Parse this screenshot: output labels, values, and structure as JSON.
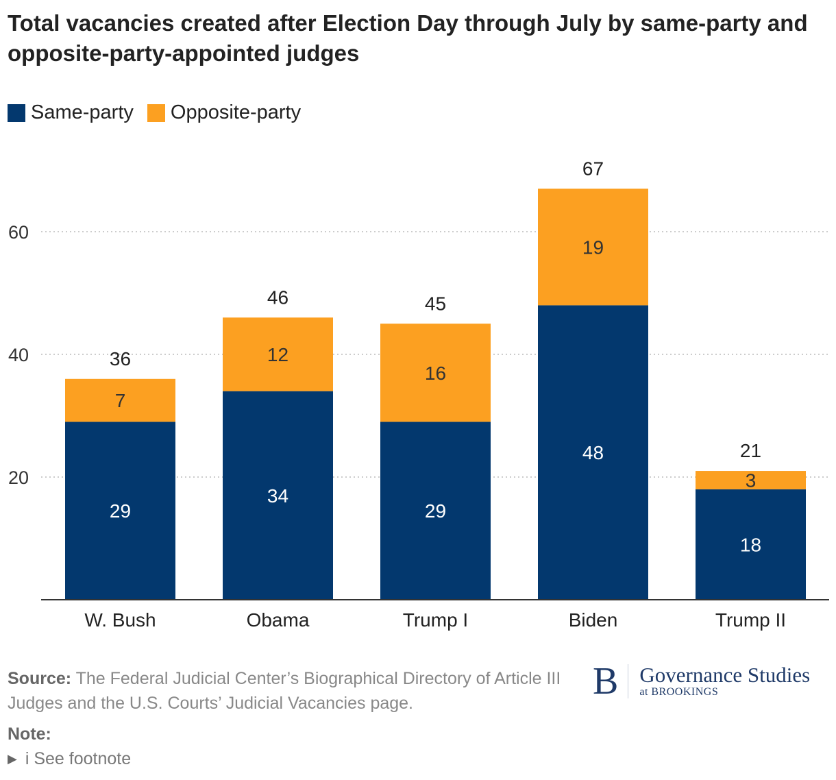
{
  "chart_data": {
    "type": "bar",
    "stacked": true,
    "title": "Total vacancies created after Election Day through July by same-party and opposite-party-appointed judges",
    "categories": [
      "W. Bush",
      "Obama",
      "Trump I",
      "Biden",
      "Trump II"
    ],
    "series": [
      {
        "name": "Same-party",
        "color": "#03386e",
        "values": [
          29,
          34,
          29,
          48,
          18
        ]
      },
      {
        "name": "Opposite-party",
        "color": "#fca021",
        "values": [
          7,
          12,
          16,
          19,
          3
        ]
      }
    ],
    "totals": [
      36,
      46,
      45,
      67,
      21
    ],
    "yticks": [
      20,
      40,
      60
    ],
    "ylim": [
      0,
      70
    ],
    "grid": true,
    "legend": "top-left"
  },
  "source_label": "Source:",
  "source_text": "The Federal Judicial Center’s Biographical Directory of Article III Judges and the U.S. Courts’ Judicial Vacancies page.",
  "note_label": "Note:",
  "footnote": "i See footnote",
  "logo": {
    "letter": "B",
    "name": "Governance Studies",
    "sub": "at BROOKINGS"
  }
}
